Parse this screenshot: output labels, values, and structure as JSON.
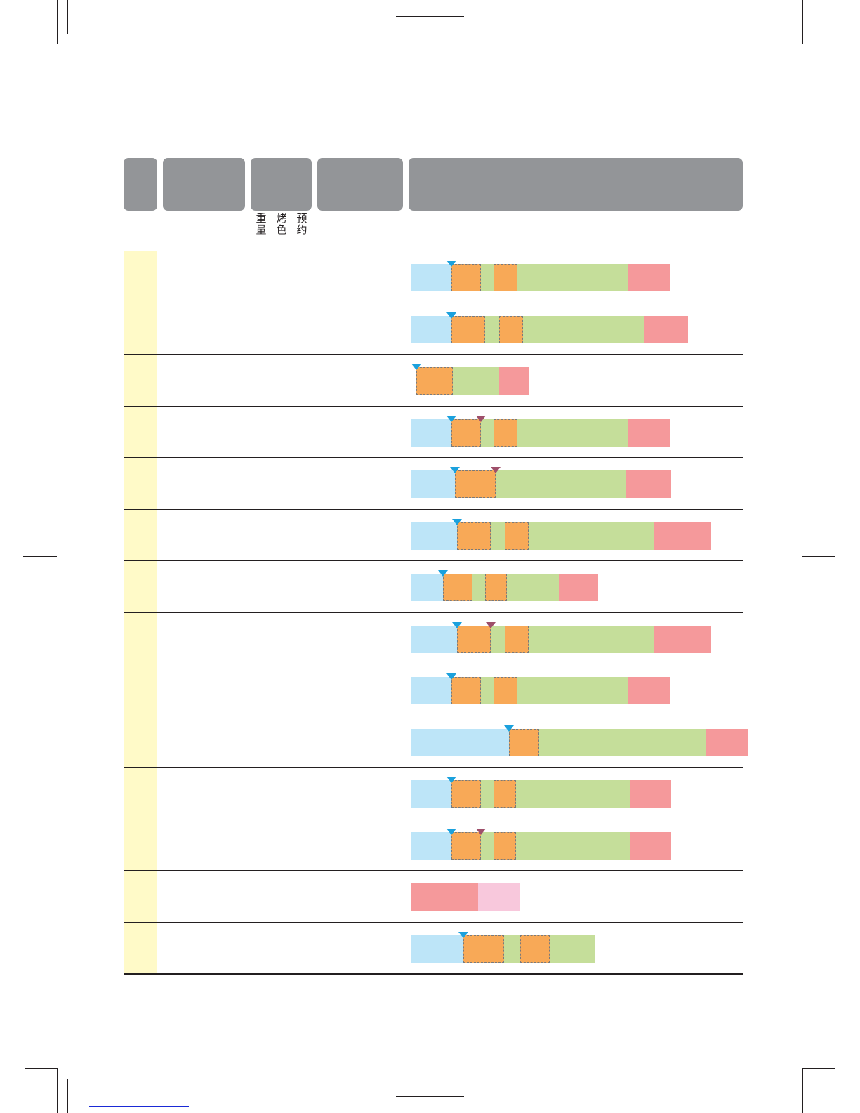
{
  "header": {
    "sub_labels": [
      "重\n量",
      "烤\n色",
      "预\n约"
    ]
  },
  "colors": {
    "header_fill": "#939598",
    "menu_column": "#fffac8",
    "stage_blue": "#bde5f8",
    "stage_orange": "#f8a957",
    "stage_green": "#c5de9a",
    "stage_red": "#f5999b",
    "stage_pink": "#f8c8dc",
    "marker_cyan": "#1ba1dd",
    "marker_purple": "#9e4f6a"
  },
  "icons": [
    "crop-mark",
    "triangle-marker-cyan",
    "triangle-marker-purple"
  ],
  "menu_rows": [
    {
      "stages": [
        "blue",
        "orange",
        "green",
        "orange",
        "green",
        "red"
      ],
      "markers": [
        "cyan"
      ]
    },
    {
      "stages": [
        "blue",
        "orange",
        "green",
        "orange",
        "green",
        "red"
      ],
      "markers": [
        "cyan"
      ]
    },
    {
      "stages": [
        "orange",
        "green",
        "red"
      ],
      "markers": [
        "cyan"
      ]
    },
    {
      "stages": [
        "blue",
        "orange",
        "green",
        "orange",
        "green",
        "red"
      ],
      "markers": [
        "cyan",
        "purple"
      ]
    },
    {
      "stages": [
        "blue",
        "orange",
        "green",
        "red"
      ],
      "markers": [
        "cyan",
        "purple"
      ]
    },
    {
      "stages": [
        "blue",
        "orange",
        "green",
        "orange",
        "green",
        "red"
      ],
      "markers": [
        "cyan"
      ]
    },
    {
      "stages": [
        "blue",
        "orange",
        "green",
        "orange",
        "green",
        "red"
      ],
      "markers": [
        "cyan"
      ]
    },
    {
      "stages": [
        "blue",
        "orange",
        "green",
        "orange",
        "green",
        "red"
      ],
      "markers": [
        "cyan",
        "purple"
      ]
    },
    {
      "stages": [
        "blue",
        "orange",
        "green",
        "orange",
        "green",
        "red"
      ],
      "markers": [
        "cyan"
      ]
    },
    {
      "stages": [
        "blue",
        "orange",
        "green",
        "red"
      ],
      "markers": [
        "cyan"
      ]
    },
    {
      "stages": [
        "blue",
        "orange",
        "green",
        "orange",
        "green",
        "red"
      ],
      "markers": [
        "cyan"
      ]
    },
    {
      "stages": [
        "blue",
        "orange",
        "green",
        "orange",
        "green",
        "red"
      ],
      "markers": [
        "cyan",
        "purple"
      ]
    },
    {
      "stages": [
        "red",
        "pink"
      ],
      "markers": []
    },
    {
      "stages": [
        "blue",
        "orange",
        "green",
        "orange",
        "green"
      ],
      "markers": [
        "cyan"
      ]
    }
  ]
}
